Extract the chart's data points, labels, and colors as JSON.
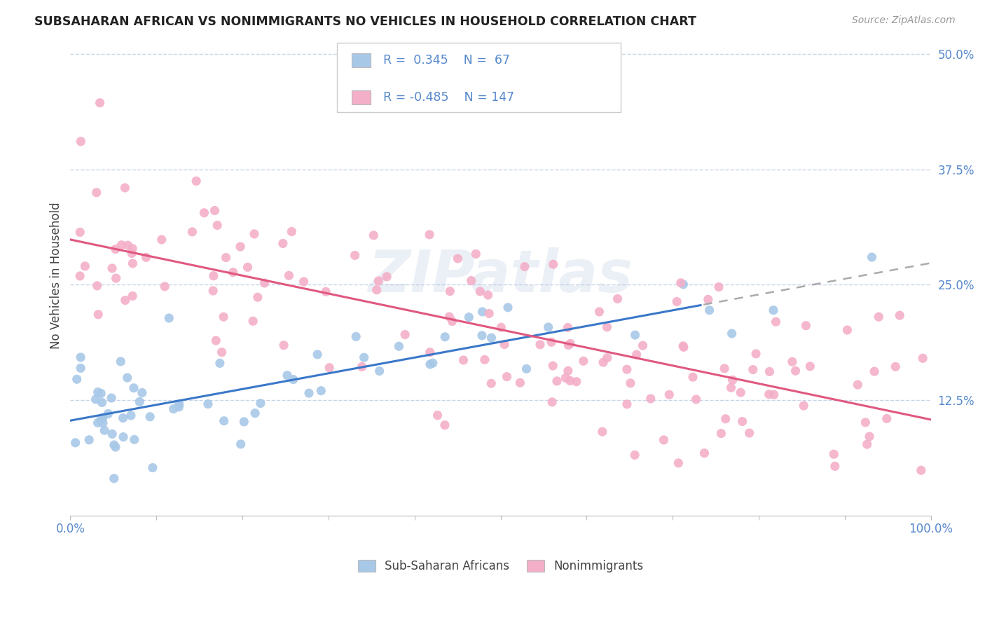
{
  "title": "SUBSAHARAN AFRICAN VS NONIMMIGRANTS NO VEHICLES IN HOUSEHOLD CORRELATION CHART",
  "source": "Source: ZipAtlas.com",
  "ylabel": "No Vehicles in Household",
  "xlim": [
    0,
    100
  ],
  "ylim": [
    0,
    52
  ],
  "ytick_vals": [
    0,
    12.5,
    25,
    37.5,
    50
  ],
  "ytick_labels": [
    "",
    "12.5%",
    "25.0%",
    "37.5%",
    "50.0%"
  ],
  "xtick_vals": [
    0,
    10,
    20,
    30,
    40,
    50,
    60,
    70,
    80,
    90,
    100
  ],
  "xtick_labels": [
    "0.0%",
    "",
    "",
    "",
    "",
    "",
    "",
    "",
    "",
    "",
    "100.0%"
  ],
  "blue_R": 0.345,
  "blue_N": 67,
  "pink_R": -0.485,
  "pink_N": 147,
  "blue_color": "#a8c8e8",
  "pink_color": "#f4afc8",
  "blue_line_color": "#3a78c9",
  "pink_line_color": "#e05880",
  "watermark": "ZIPatlas",
  "background_color": "#ffffff",
  "grid_color": "#c8d4e8",
  "legend_label_blue": "Sub-Saharan Africans",
  "legend_label_pink": "Nonimmigrants",
  "tick_color": "#5588cc",
  "title_color": "#222222",
  "ylabel_color": "#444444"
}
